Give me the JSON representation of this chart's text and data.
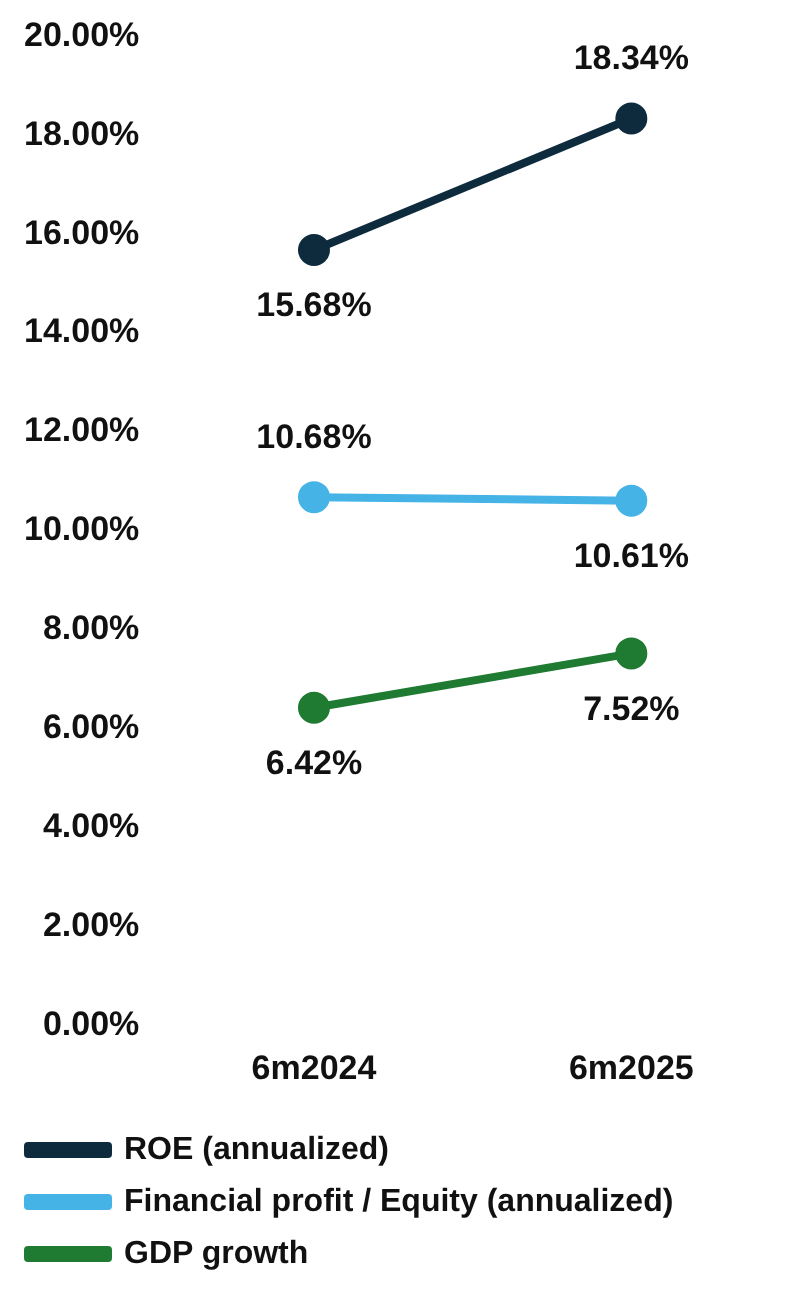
{
  "chart_data": {
    "type": "line",
    "categories": [
      "6m2024",
      "6m2025"
    ],
    "series": [
      {
        "name": "ROE (annualized)",
        "color": "#0e2b3d",
        "values": [
          15.68,
          18.34
        ]
      },
      {
        "name": "Financial profit / Equity (annualized)",
        "color": "#45b3e6",
        "values": [
          10.68,
          10.61
        ]
      },
      {
        "name": "GDP growth",
        "color": "#1f7a32",
        "values": [
          6.42,
          7.52
        ]
      }
    ],
    "ylim": [
      0,
      20
    ],
    "yticks": [
      {
        "value": 0,
        "label": "0.00%"
      },
      {
        "value": 2,
        "label": "2.00%"
      },
      {
        "value": 4,
        "label": "4.00%"
      },
      {
        "value": 6,
        "label": "6.00%"
      },
      {
        "value": 8,
        "label": "8.00%"
      },
      {
        "value": 10,
        "label": "10.00%"
      },
      {
        "value": 12,
        "label": "12.00%"
      },
      {
        "value": 14,
        "label": "14.00%"
      },
      {
        "value": 16,
        "label": "16.00%"
      },
      {
        "value": 18,
        "label": "18.00%"
      },
      {
        "value": 20,
        "label": "20.00%"
      }
    ],
    "value_labels": [
      [
        "15.68%",
        "18.34%"
      ],
      [
        "10.68%",
        "10.61%"
      ],
      [
        "6.42%",
        "7.52%"
      ]
    ],
    "grid": false,
    "legend": "bottom",
    "marker": "circle",
    "line_style": "solid"
  }
}
